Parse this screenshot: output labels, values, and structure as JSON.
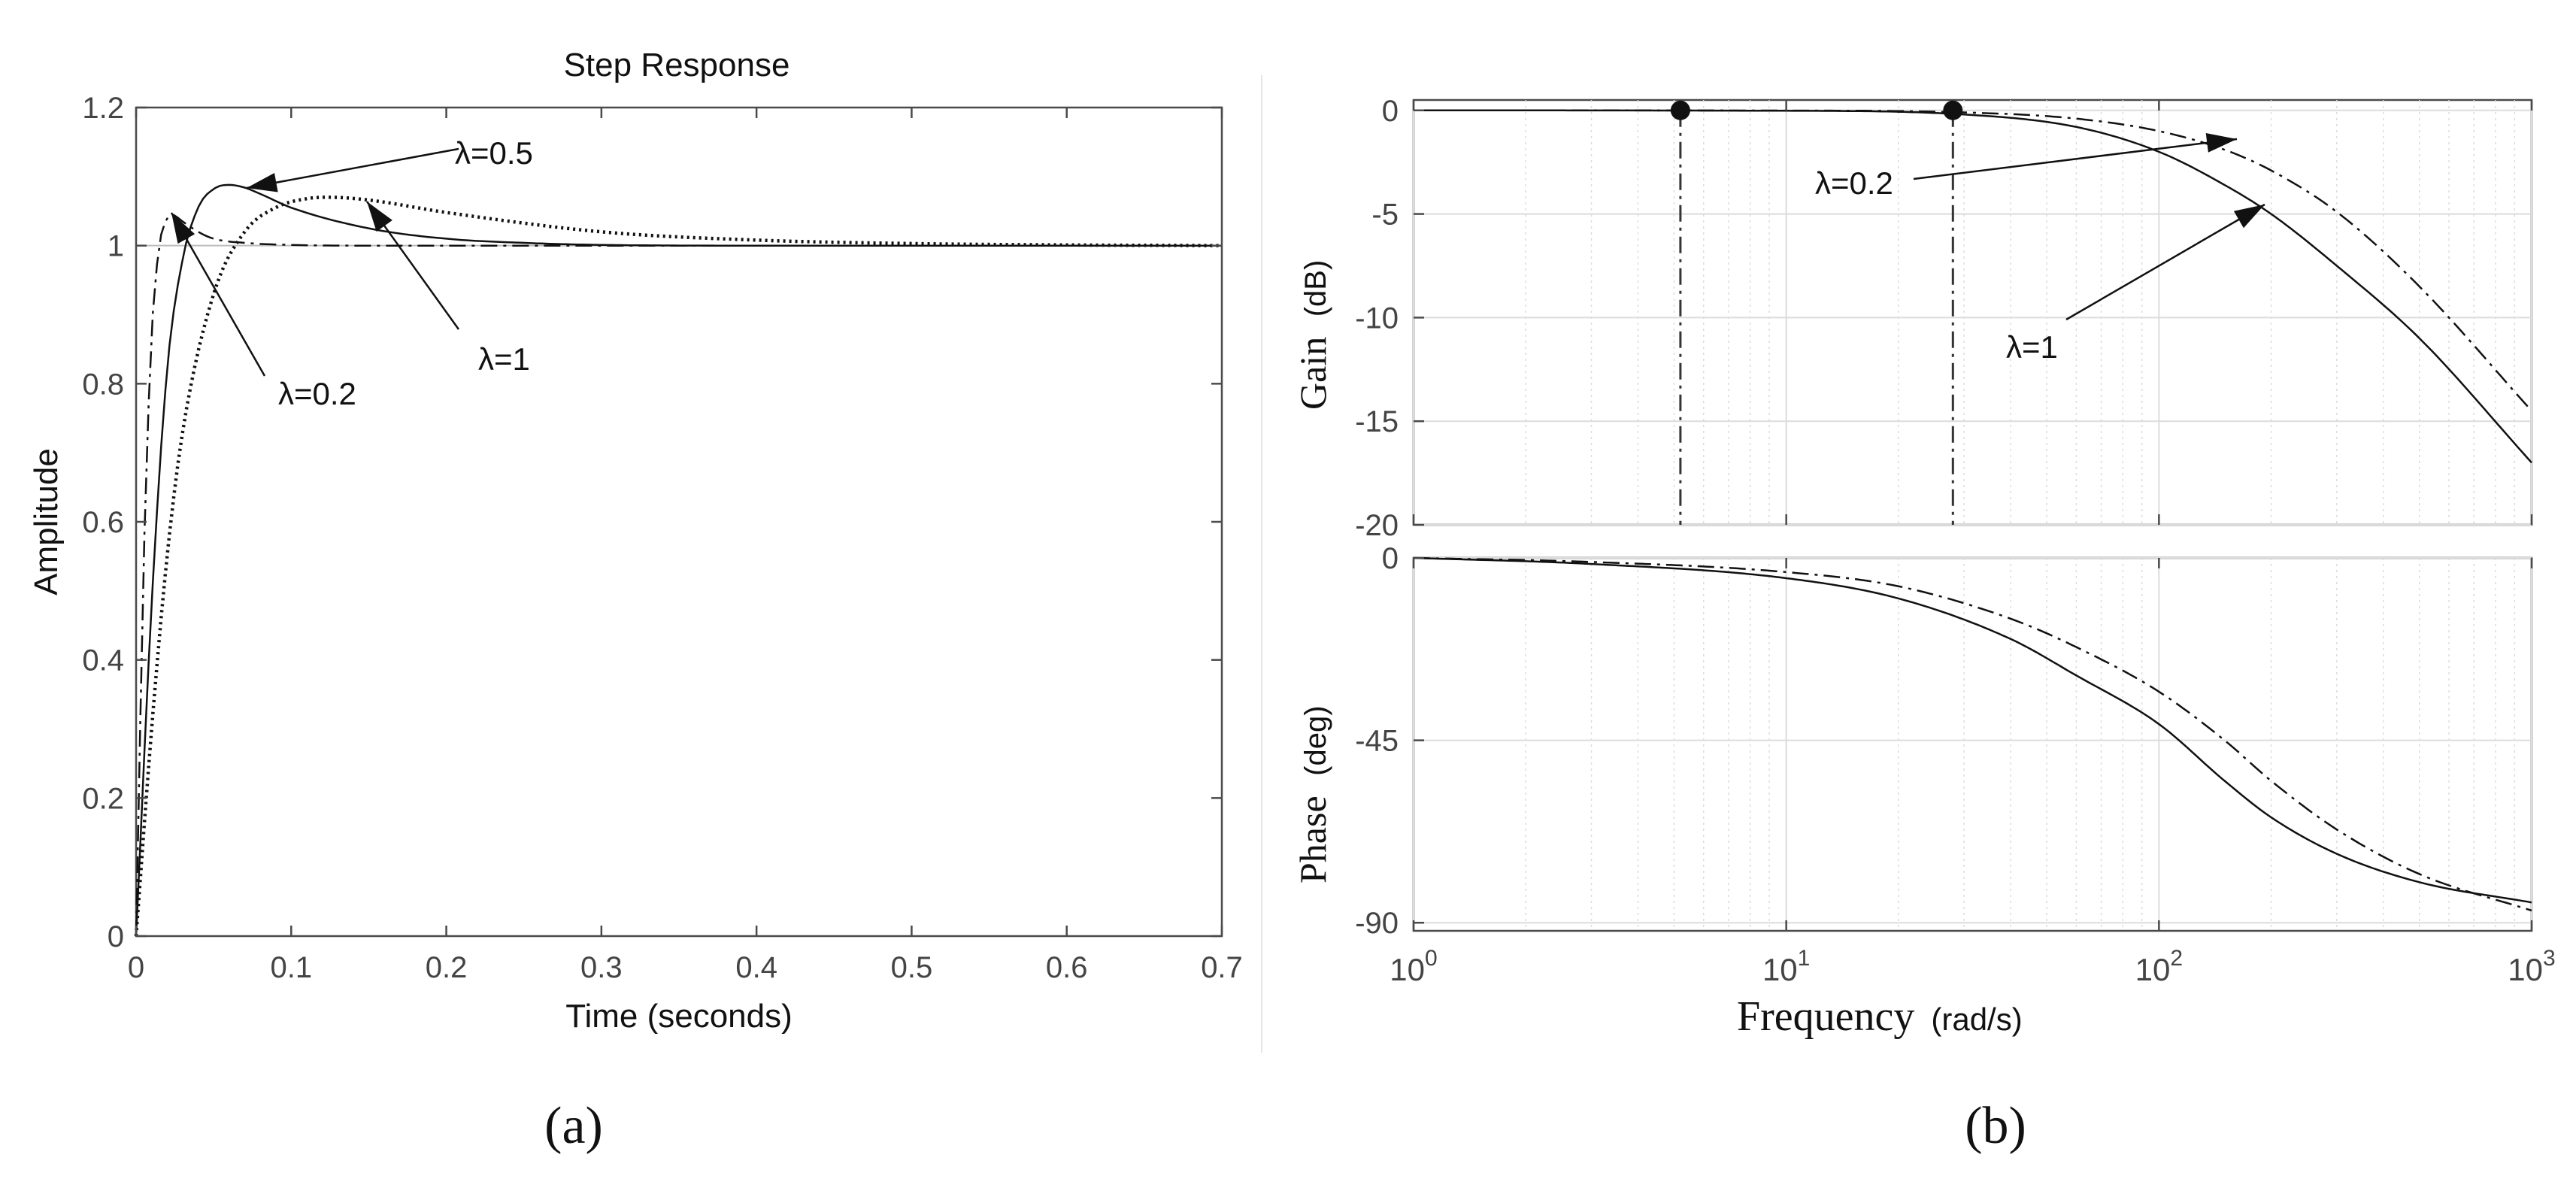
{
  "chart_data": [
    {
      "panel": "(a)",
      "type": "line",
      "title": "Step Response",
      "xlabel": "Time (seconds)",
      "ylabel": "Amplitude",
      "xlim": [
        0,
        0.7
      ],
      "ylim": [
        0,
        1.2
      ],
      "xticks": [
        0,
        0.1,
        0.2,
        0.3,
        0.4,
        0.5,
        0.6,
        0.7
      ],
      "xtick_labels": [
        "0",
        "0.1",
        "0.2",
        "0.3",
        "0.4",
        "0.5",
        "0.6",
        "0.7"
      ],
      "yticks": [
        0,
        0.2,
        0.4,
        0.6,
        0.8,
        1,
        1.2
      ],
      "ytick_labels": [
        "0",
        "0.2",
        "0.4",
        "0.6",
        "0.8",
        "1",
        "1.2"
      ],
      "grid": false,
      "series": [
        {
          "label": "λ=0.2",
          "style": "dashdot",
          "peak": [
            0.023,
            1.045
          ],
          "x": [
            0,
            0.005,
            0.01,
            0.015,
            0.02,
            0.023,
            0.03,
            0.04,
            0.05,
            0.07,
            0.1,
            0.15,
            0.2,
            0.3,
            0.7
          ],
          "y": [
            0,
            0.55,
            0.87,
            1.0,
            1.04,
            1.045,
            1.035,
            1.02,
            1.01,
            1.004,
            1.001,
            1.0,
            1.0,
            1.0,
            1.0
          ]
        },
        {
          "label": "λ=0.5",
          "style": "solid",
          "peak": [
            0.06,
            1.088
          ],
          "x": [
            0,
            0.01,
            0.02,
            0.03,
            0.04,
            0.05,
            0.06,
            0.07,
            0.08,
            0.1,
            0.15,
            0.2,
            0.25,
            0.3,
            0.4,
            0.7
          ],
          "y": [
            0,
            0.48,
            0.82,
            0.98,
            1.055,
            1.082,
            1.088,
            1.084,
            1.075,
            1.055,
            1.025,
            1.01,
            1.004,
            1.001,
            1.0,
            1.0
          ]
        },
        {
          "label": "λ=1",
          "style": "dotted",
          "peak": [
            0.125,
            1.07
          ],
          "x": [
            0,
            0.01,
            0.02,
            0.03,
            0.05,
            0.07,
            0.09,
            0.11,
            0.125,
            0.15,
            0.2,
            0.3,
            0.4,
            0.5,
            0.6,
            0.7
          ],
          "y": [
            0,
            0.3,
            0.55,
            0.73,
            0.93,
            1.02,
            1.055,
            1.068,
            1.07,
            1.066,
            1.048,
            1.02,
            1.008,
            1.003,
            1.001,
            1.0
          ]
        }
      ],
      "reference_line": {
        "y": 1,
        "label": ""
      },
      "annotations": [
        {
          "text": "λ=0.5",
          "points_to": [
            0.06,
            1.088
          ]
        },
        {
          "text": "λ=1",
          "points_to": [
            0.145,
            1.065
          ]
        },
        {
          "text": "λ=0.2",
          "points_to": [
            0.022,
            1.045
          ]
        }
      ]
    },
    {
      "panel": "(b)",
      "type": "line",
      "subplots": [
        {
          "ylabel": "Gain",
          "ylabel_unit": "(dB)",
          "ylim": [
            -20,
            0.5
          ],
          "yticks": [
            0,
            -5,
            -10,
            -15,
            -20
          ],
          "ytick_labels": [
            "0",
            "-5",
            "-10",
            "-15",
            "-20"
          ],
          "xscale": "log",
          "grid": true,
          "series": [
            {
              "label": "λ=1",
              "style": "solid",
              "x": [
                1,
                10,
                30,
                60,
                100,
                150,
                200,
                300,
                500,
                1000
              ],
              "y": [
                0,
                -0.02,
                -0.2,
                -0.8,
                -2.0,
                -3.6,
                -5.0,
                -7.5,
                -11.0,
                -17.0
              ]
            },
            {
              "label": "λ=0.2",
              "style": "dashdot",
              "x": [
                1,
                10,
                30,
                60,
                100,
                150,
                200,
                300,
                500,
                1000
              ],
              "y": [
                0,
                -0.01,
                -0.1,
                -0.4,
                -1.0,
                -1.9,
                -2.9,
                -4.9,
                -8.5,
                -14.5
              ]
            }
          ],
          "markers": [
            {
              "x": 5.2,
              "y": 0
            },
            {
              "x": 28,
              "y": 0
            }
          ],
          "vlines": [
            5.2,
            28
          ],
          "annotations": [
            {
              "text": "λ=0.2",
              "points_to": [
                150,
                -1.9
              ]
            },
            {
              "text": "λ=1",
              "points_to": [
                190,
                -4.8
              ]
            }
          ]
        },
        {
          "ylabel": "Phase",
          "ylabel_unit": "(deg)",
          "ylim": [
            -92,
            0
          ],
          "yticks": [
            0,
            -45,
            -90
          ],
          "ytick_labels": [
            "0",
            "-45",
            "-90"
          ],
          "xscale": "log",
          "grid": true,
          "series": [
            {
              "label": "λ=1",
              "style": "solid",
              "x": [
                1,
                3,
                10,
                20,
                40,
                60,
                100,
                150,
                200,
                300,
                500,
                1000
              ],
              "y": [
                0,
                -1.5,
                -5,
                -10,
                -20,
                -29,
                -41,
                -55,
                -64,
                -73,
                -80,
                -85
              ]
            },
            {
              "label": "λ=0.2",
              "style": "dashdot",
              "x": [
                1,
                3,
                10,
                20,
                40,
                60,
                100,
                150,
                200,
                300,
                500,
                1000
              ],
              "y": [
                0,
                -1,
                -3.5,
                -7,
                -15,
                -22,
                -33,
                -45,
                -55,
                -67,
                -78,
                -87
              ]
            }
          ]
        }
      ],
      "xlabel": "Frequency",
      "xlabel_unit": "(rad/s)",
      "xlim": [
        1,
        1000
      ],
      "xticks": [
        1,
        10,
        100,
        1000
      ],
      "xtick_base": "10",
      "xtick_exponents": [
        "0",
        "1",
        "2",
        "3"
      ]
    }
  ],
  "panel_labels": [
    "(a)",
    "(b)"
  ]
}
